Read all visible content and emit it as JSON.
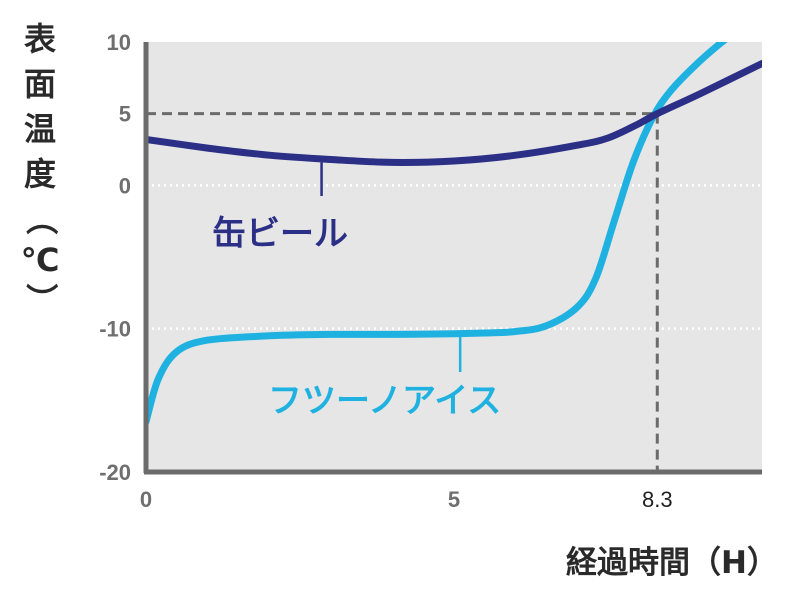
{
  "chart_data": {
    "type": "line",
    "ylabel": "表面温度（℃）",
    "xlabel": "経過時間（H）",
    "xlim": [
      0,
      10
    ],
    "ylim": [
      -20,
      10
    ],
    "x_ticks": [
      {
        "value": 0,
        "label": "0"
      },
      {
        "value": 5,
        "label": "5"
      },
      {
        "value": 8.3,
        "label": "8.3"
      }
    ],
    "y_ticks": [
      {
        "value": 10,
        "label": "10"
      },
      {
        "value": 5,
        "label": "5"
      },
      {
        "value": 0,
        "label": "0"
      },
      {
        "value": -10,
        "label": "-10"
      },
      {
        "value": -20,
        "label": "-20"
      }
    ],
    "gridlines_dotted_y": [
      0,
      -10
    ],
    "reference_point": {
      "x": 8.3,
      "y": 5
    },
    "background": "#e6e6e6",
    "series": [
      {
        "name": "缶ビール",
        "color": "#2b2f86",
        "points": [
          [
            0,
            3.2
          ],
          [
            1,
            2.6
          ],
          [
            2,
            2.1
          ],
          [
            3,
            1.8
          ],
          [
            4,
            1.6
          ],
          [
            5,
            1.7
          ],
          [
            6,
            2.1
          ],
          [
            7,
            2.8
          ],
          [
            7.5,
            3.3
          ],
          [
            8,
            4.3
          ],
          [
            8.3,
            5
          ],
          [
            9,
            6.4
          ],
          [
            10,
            8.5
          ]
        ]
      },
      {
        "name": "フツーノアイス",
        "color": "#1fb2e0",
        "points": [
          [
            0,
            -16.5
          ],
          [
            0.2,
            -13.5
          ],
          [
            0.5,
            -11.6
          ],
          [
            1,
            -10.8
          ],
          [
            2,
            -10.5
          ],
          [
            3,
            -10.4
          ],
          [
            4,
            -10.4
          ],
          [
            5,
            -10.35
          ],
          [
            5.5,
            -10.3
          ],
          [
            6,
            -10.2
          ],
          [
            6.5,
            -9.8
          ],
          [
            7,
            -8.5
          ],
          [
            7.3,
            -6.5
          ],
          [
            7.6,
            -2.5
          ],
          [
            7.9,
            1.5
          ],
          [
            8.2,
            4.5
          ],
          [
            8.5,
            6.5
          ],
          [
            9,
            8.7
          ],
          [
            9.5,
            10.5
          ],
          [
            10,
            12
          ]
        ]
      }
    ]
  }
}
